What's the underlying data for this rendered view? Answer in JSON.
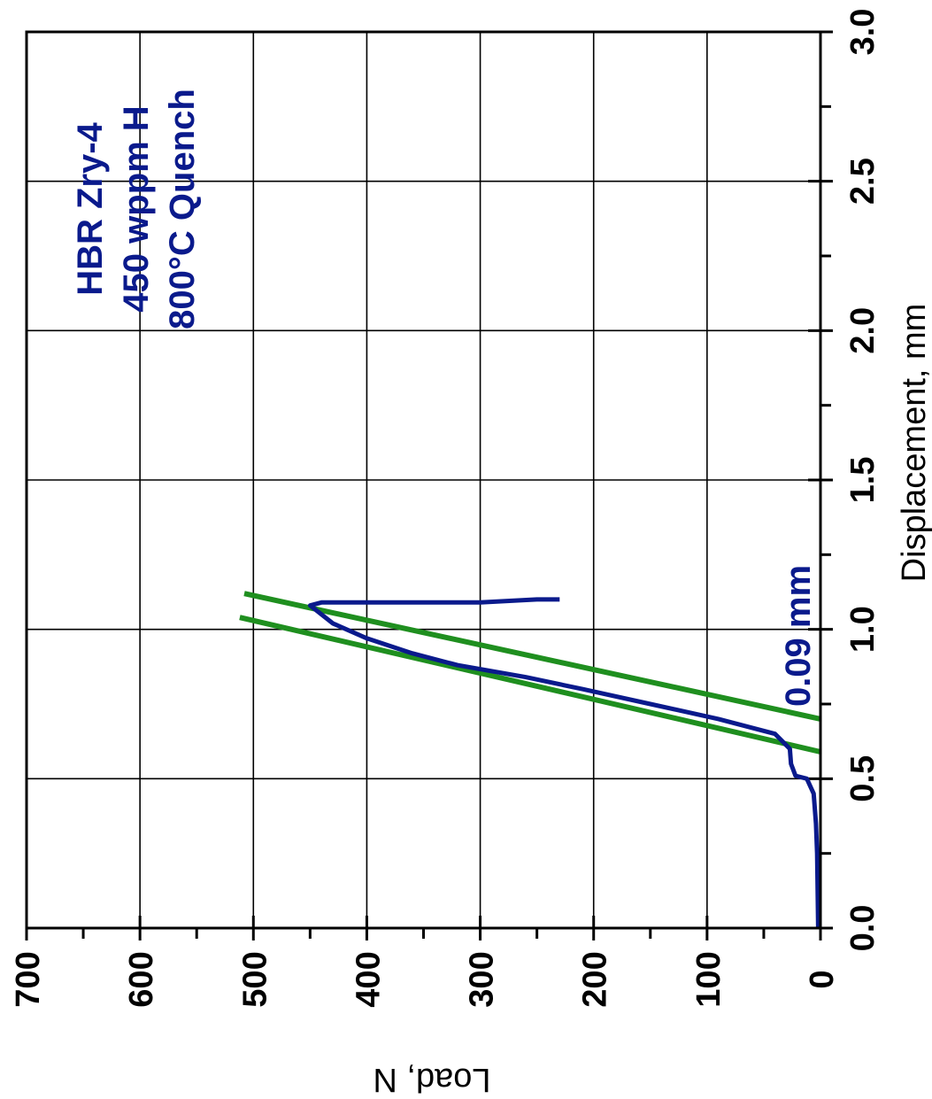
{
  "chart_data": {
    "type": "line",
    "orientation": "rotated-90-clockwise",
    "title": "",
    "xlabel": "Displacement, mm",
    "ylabel": "Load, N",
    "xlim": [
      0.0,
      3.0
    ],
    "ylim": [
      0,
      700
    ],
    "x_ticks": [
      "0.0",
      "0.5",
      "1.0",
      "1.5",
      "2.0",
      "2.5",
      "3.0"
    ],
    "y_ticks": [
      "0",
      "100",
      "200",
      "300",
      "400",
      "500",
      "600",
      "700"
    ],
    "x_tick_values": [
      0.0,
      0.5,
      1.0,
      1.5,
      2.0,
      2.5,
      3.0
    ],
    "y_tick_values": [
      0,
      100,
      200,
      300,
      400,
      500,
      600,
      700
    ],
    "grid": true,
    "annotation_lines": [
      "HBR Zry-4",
      "450 wppm H",
      "800°C Quench"
    ],
    "offset_label": "0.09 mm",
    "colors": {
      "curve": "#0a1a8c",
      "offset_lines": "#1f8f1f",
      "annotation": "#0a1a8c",
      "frame": "#000000"
    },
    "series": [
      {
        "role": "load-displacement-curve",
        "color": "#0a1a8c",
        "points": [
          [
            0.0,
            2
          ],
          [
            0.25,
            3
          ],
          [
            0.35,
            4
          ],
          [
            0.45,
            6
          ],
          [
            0.5,
            12
          ],
          [
            0.51,
            22
          ],
          [
            0.55,
            26
          ],
          [
            0.6,
            27
          ],
          [
            0.65,
            40
          ],
          [
            0.7,
            90
          ],
          [
            0.75,
            150
          ],
          [
            0.8,
            210
          ],
          [
            0.84,
            260
          ],
          [
            0.88,
            320
          ],
          [
            0.92,
            360
          ],
          [
            0.97,
            400
          ],
          [
            1.02,
            430
          ],
          [
            1.08,
            450
          ],
          [
            1.09,
            440
          ],
          [
            1.09,
            360
          ],
          [
            1.09,
            300
          ],
          [
            1.1,
            250
          ],
          [
            1.1,
            230
          ]
        ]
      },
      {
        "role": "offset-line",
        "color": "#1f8f1f",
        "points": [
          [
            0.59,
            0
          ],
          [
            1.04,
            512
          ]
        ]
      },
      {
        "role": "offset-line",
        "color": "#1f8f1f",
        "points": [
          [
            0.7,
            0
          ],
          [
            1.12,
            508
          ]
        ]
      }
    ]
  }
}
